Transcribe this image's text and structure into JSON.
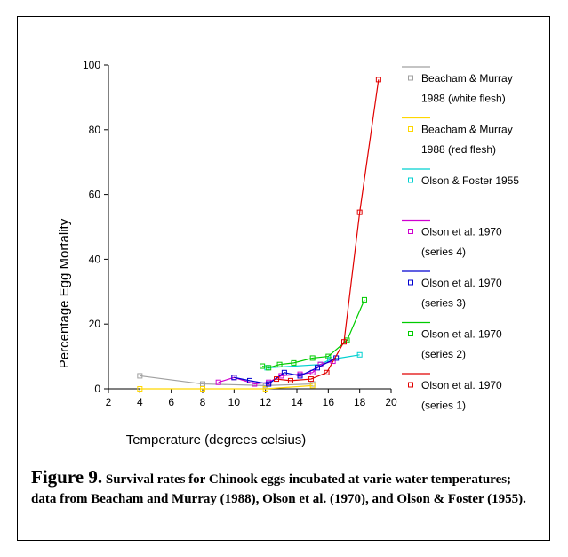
{
  "caption": {
    "label": "Figure 9.",
    "text": "Survival rates for Chinook eggs incubated at varie water temperatures; data from  Beacham and Murray (1988), Olson et al. (1970), and Olson & Foster (1955)."
  },
  "chart_data": {
    "type": "line",
    "title": "",
    "xlabel": "Temperature (degrees celsius)",
    "ylabel": "Percentage Egg Mortality",
    "xlim": [
      2,
      20
    ],
    "ylim": [
      0,
      100
    ],
    "xticks": [
      2,
      4,
      6,
      8,
      10,
      12,
      14,
      16,
      18,
      20
    ],
    "yticks": [
      0,
      20,
      40,
      60,
      80,
      100
    ],
    "grid": false,
    "legend_position": "right",
    "series": [
      {
        "name": [
          "Beacham & Murray",
          "1988 (white flesh)"
        ],
        "color": "#a0a0a0",
        "points": [
          [
            4,
            4
          ],
          [
            8,
            1.5
          ],
          [
            12,
            1
          ],
          [
            15,
            1.5
          ]
        ]
      },
      {
        "name": [
          "Beacham & Murray",
          "1988 (red flesh)"
        ],
        "color": "#ffd700",
        "points": [
          [
            4,
            0
          ],
          [
            8,
            0
          ],
          [
            12,
            0
          ],
          [
            15,
            1
          ]
        ]
      },
      {
        "name": [
          "Olson & Foster 1955"
        ],
        "color": "#00d0d0",
        "points": [
          [
            12.1,
            6.5
          ],
          [
            15.5,
            7.5
          ],
          [
            16.1,
            9
          ],
          [
            18,
            10.5
          ]
        ]
      },
      {
        "name": [
          "Olson et al. 1970",
          "(series 4)"
        ],
        "color": "#d000d0",
        "points": [
          [
            9,
            2
          ],
          [
            10,
            3.5
          ],
          [
            11.3,
            1.5
          ],
          [
            12.2,
            2
          ],
          [
            13,
            4
          ],
          [
            14.2,
            4.5
          ],
          [
            15,
            5
          ],
          [
            15.5,
            7.5
          ],
          [
            16.3,
            8.5
          ]
        ]
      },
      {
        "name": [
          "Olson et al. 1970",
          "(series 3)"
        ],
        "color": "#0000d0",
        "points": [
          [
            10,
            3.5
          ],
          [
            11,
            2.5
          ],
          [
            12.2,
            1.5
          ],
          [
            13.2,
            5
          ],
          [
            14.2,
            4
          ],
          [
            15.3,
            6.5
          ],
          [
            16.5,
            9.5
          ]
        ]
      },
      {
        "name": [
          "Olson et al. 1970",
          "(series 2)"
        ],
        "color": "#00cc00",
        "points": [
          [
            11.8,
            7
          ],
          [
            12.2,
            6.5
          ],
          [
            12.9,
            7.5
          ],
          [
            13.8,
            8
          ],
          [
            15,
            9.5
          ],
          [
            16,
            10
          ],
          [
            17.2,
            15
          ],
          [
            18.3,
            27.5
          ]
        ]
      },
      {
        "name": [
          "Olson et al. 1970",
          "(series 1)"
        ],
        "color": "#e00000",
        "points": [
          [
            12.7,
            3
          ],
          [
            13.6,
            2.5
          ],
          [
            14.9,
            3
          ],
          [
            15.9,
            5
          ],
          [
            17,
            14.5
          ],
          [
            18,
            54.5
          ],
          [
            19.2,
            95.5
          ]
        ]
      }
    ]
  }
}
